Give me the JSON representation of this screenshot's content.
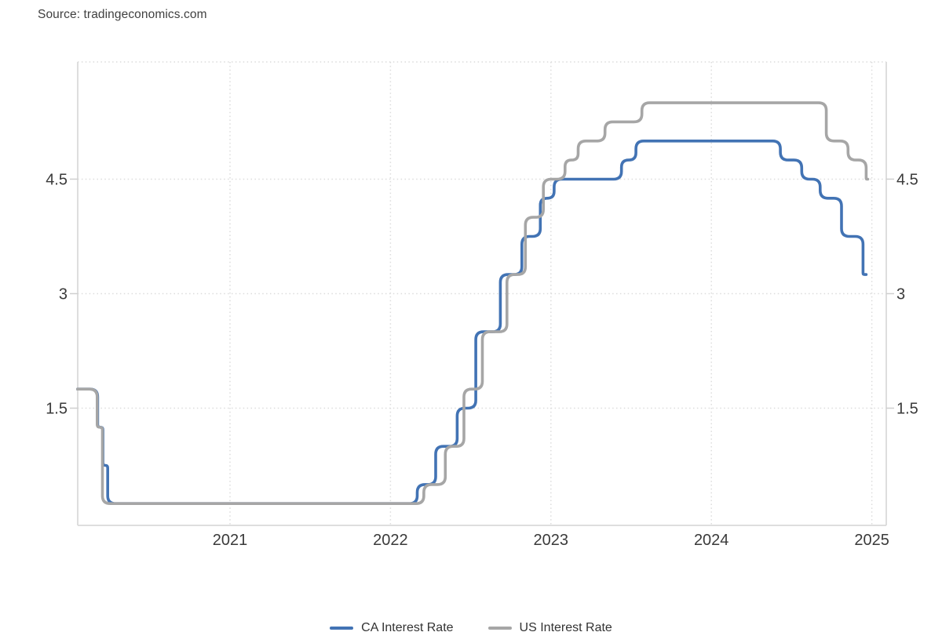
{
  "source": {
    "label": "Source: tradingeconomics.com"
  },
  "legend": {
    "items": [
      {
        "label": "CA Interest Rate",
        "color": "#4273b4"
      },
      {
        "label": "US Interest Rate",
        "color": "#a6a6a6"
      }
    ]
  },
  "chart_data": {
    "type": "line",
    "subtype": "stepped-rounded",
    "title": "",
    "xlabel": "",
    "ylabel": "",
    "x_axis": {
      "tick_labels": [
        "2021",
        "2022",
        "2023",
        "2024",
        "2025"
      ],
      "tick_values": [
        2021,
        2022,
        2023,
        2024,
        2025
      ],
      "range": [
        2020.05,
        2025.09
      ],
      "grid": "dotted"
    },
    "y_axis": {
      "tick_labels": [
        "1.5",
        "3",
        "4.5"
      ],
      "tick_values": [
        1.5,
        3,
        4.5
      ],
      "range": [
        0,
        6
      ],
      "sides": [
        "left",
        "right"
      ],
      "grid": "dotted"
    },
    "series": [
      {
        "name": "CA Interest Rate",
        "color": "#4273b4",
        "points": [
          [
            2020.05,
            1.75
          ],
          [
            2020.175,
            1.25
          ],
          [
            2020.208,
            0.75
          ],
          [
            2020.238,
            0.25
          ],
          [
            2022.167,
            0.5
          ],
          [
            2022.282,
            1.0
          ],
          [
            2022.416,
            1.5
          ],
          [
            2022.532,
            2.5
          ],
          [
            2022.685,
            3.25
          ],
          [
            2022.819,
            3.75
          ],
          [
            2022.934,
            4.25
          ],
          [
            2023.02,
            4.5
          ],
          [
            2023.44,
            4.75
          ],
          [
            2023.53,
            5.0
          ],
          [
            2024.43,
            4.75
          ],
          [
            2024.563,
            4.5
          ],
          [
            2024.678,
            4.25
          ],
          [
            2024.811,
            3.75
          ],
          [
            2024.945,
            3.25
          ],
          [
            2024.965,
            3.25
          ]
        ]
      },
      {
        "name": "US Interest Rate",
        "color": "#a6a6a6",
        "points": [
          [
            2020.05,
            1.75
          ],
          [
            2020.172,
            1.25
          ],
          [
            2020.205,
            0.25
          ],
          [
            2022.208,
            0.5
          ],
          [
            2022.342,
            1.0
          ],
          [
            2022.458,
            1.75
          ],
          [
            2022.573,
            2.5
          ],
          [
            2022.726,
            3.25
          ],
          [
            2022.841,
            4.0
          ],
          [
            2022.953,
            4.5
          ],
          [
            2023.088,
            4.75
          ],
          [
            2023.17,
            5.0
          ],
          [
            2023.337,
            5.25
          ],
          [
            2023.567,
            5.5
          ],
          [
            2024.716,
            5.0
          ],
          [
            2024.852,
            4.75
          ],
          [
            2024.965,
            4.5
          ],
          [
            2024.975,
            4.5
          ]
        ]
      }
    ],
    "colors": {
      "axis_line": "#d9d9d9",
      "grid_dotted": "#dcdcdc",
      "tick": "#cfcfcf",
      "axis_label_text": "#3a3a3a"
    }
  }
}
